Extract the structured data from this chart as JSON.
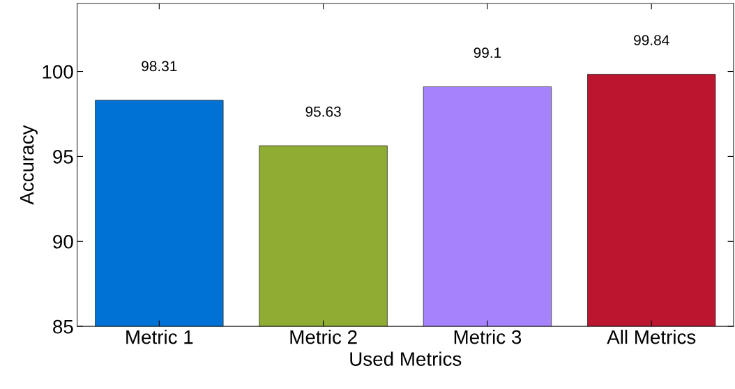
{
  "chart_data": {
    "type": "bar",
    "xlabel": "Used Metrics",
    "ylabel": "Accuracy",
    "categories": [
      "Metric 1",
      "Metric 2",
      "Metric 3",
      "All Metrics"
    ],
    "values": [
      98.31,
      95.63,
      99.1,
      99.84
    ],
    "colors": [
      "#0072d6",
      "#8fac33",
      "#a683fc",
      "#bb1530"
    ],
    "ylim": [
      85,
      104
    ],
    "yticks": [
      85,
      90,
      95,
      100
    ],
    "data_labels": true,
    "grid": false,
    "legend": false
  }
}
